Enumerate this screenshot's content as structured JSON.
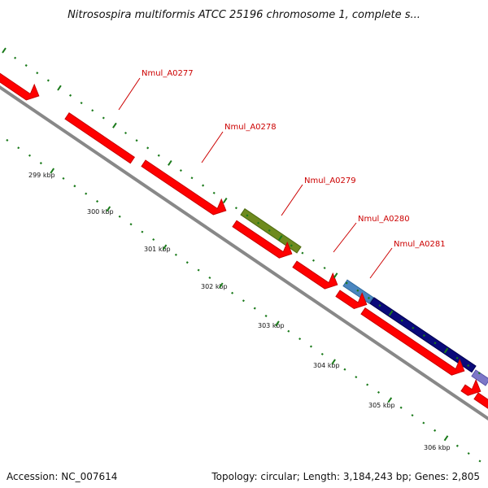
{
  "map": {
    "title": "Nitrosospira multiformis ATCC 25196 chromosome 1, complete s...",
    "accession": "Accession: NC_007614",
    "summary": "Topology: circular; Length: 3,184,243 bp; Genes: 2,805"
  },
  "kbp_labels": [
    "299 kbp",
    "300 kbp",
    "301 kbp",
    "302 kbp",
    "303 kbp",
    "304 kbp",
    "305 kbp",
    "306 kbp"
  ],
  "gene_labels": [
    "Nmul_A0277",
    "Nmul_A0278",
    "Nmul_A0279",
    "Nmul_A0280",
    "Nmul_A0281"
  ],
  "colors": {
    "gene_red": "#ff0000",
    "gene_olive": "#6e8a1e",
    "gene_steel_blue": "#4a86c0",
    "gene_navy": "#0a0a7a",
    "gene_lavender": "#7d77c8",
    "backbone": "#888888",
    "tick_green": "#1a7a1a",
    "label_red": "#cc0000"
  }
}
